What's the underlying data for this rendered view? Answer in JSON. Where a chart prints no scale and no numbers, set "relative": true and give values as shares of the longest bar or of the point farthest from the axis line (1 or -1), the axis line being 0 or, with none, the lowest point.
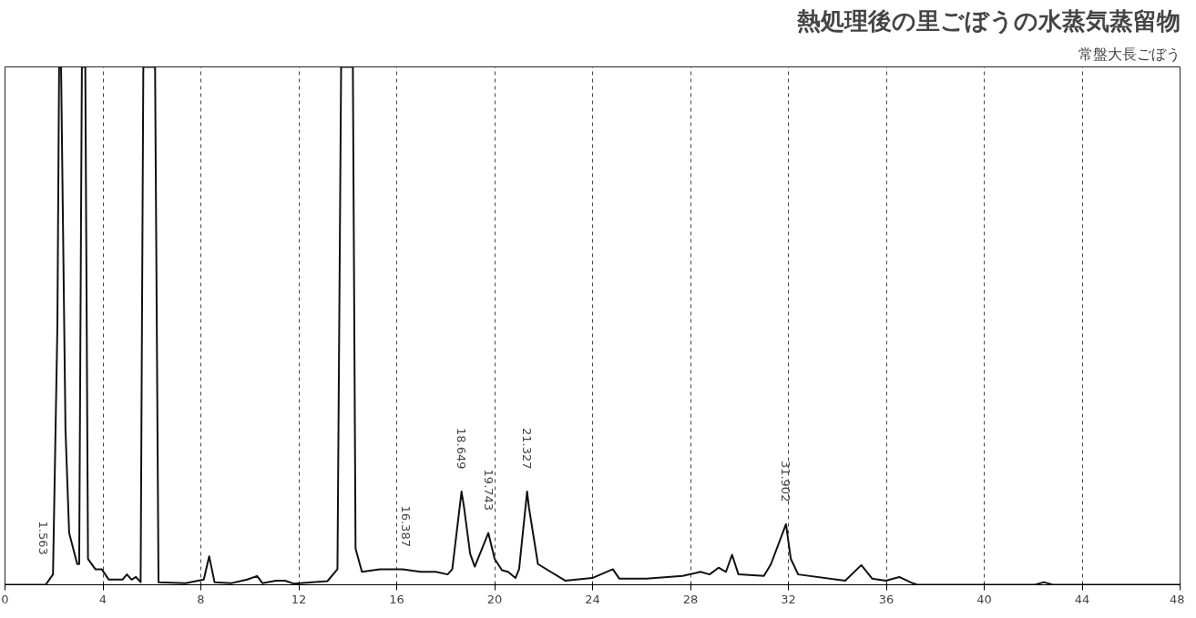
{
  "chart_data": {
    "type": "line",
    "title": "熱処理後の里ごぼうの水蒸気蒸留物",
    "subtitle": "常盤大長ごぼう",
    "relative": true,
    "xlim": [
      0,
      48
    ],
    "xticks": [
      0,
      4,
      8,
      12,
      16,
      20,
      24,
      28,
      32,
      36,
      40,
      44,
      48
    ],
    "grid": "x",
    "line_style": "solid",
    "series": [
      {
        "color": "#111111",
        "x": [
          0,
          1.66,
          1.96,
          2.14,
          2.21,
          2.29,
          2.47,
          2.62,
          2.95,
          3.03,
          3.14,
          3.28,
          3.39,
          3.69,
          3.87,
          3.95,
          4.24,
          4.8,
          4.98,
          5.17,
          5.35,
          5.54,
          5.65,
          6.13,
          6.27,
          7.38,
          8.12,
          8.34,
          8.56,
          9.23,
          9.89,
          10.3,
          10.52,
          11.07,
          11.44,
          11.81,
          13.17,
          13.58,
          13.73,
          14.21,
          14.32,
          14.58,
          15.31,
          16.24,
          16.97,
          17.6,
          18.08,
          18.27,
          18.649,
          18.75,
          19.0,
          19.19,
          19.743,
          20.0,
          20.3,
          20.55,
          20.85,
          21.0,
          21.327,
          21.4,
          21.77,
          22.88,
          23.99,
          24.83,
          25.09,
          26.2,
          27.68,
          28.41,
          28.78,
          29.15,
          29.45,
          29.7,
          29.96,
          31.0,
          31.29,
          31.902,
          32.1,
          32.4,
          34.32,
          34.98,
          35.42,
          35.98,
          36.53,
          37.08,
          37.27,
          42.07,
          42.44,
          42.8,
          48
        ],
        "values": [
          0,
          0,
          0.02,
          0.5,
          1,
          1,
          0.3,
          0.1,
          0.04,
          0.04,
          1,
          1,
          0.05,
          0.03,
          0.03,
          0.03,
          0.01,
          0.01,
          0.02,
          0.01,
          0.015,
          0.005,
          1,
          1,
          0.005,
          0.003,
          0.01,
          0.055,
          0.005,
          0.003,
          0.01,
          0.017,
          0.003,
          0.008,
          0.008,
          0.002,
          0.007,
          0.03,
          1,
          1,
          0.07,
          0.025,
          0.03,
          0.03,
          0.025,
          0.025,
          0.02,
          0.03,
          0.18,
          0.15,
          0.06,
          0.035,
          0.1,
          0.05,
          0.028,
          0.025,
          0.013,
          0.03,
          0.18,
          0.15,
          0.04,
          0.008,
          0.013,
          0.03,
          0.012,
          0.012,
          0.017,
          0.025,
          0.02,
          0.033,
          0.025,
          0.058,
          0.02,
          0.017,
          0.04,
          0.117,
          0.05,
          0.02,
          0.008,
          0.038,
          0.012,
          0.008,
          0.015,
          0.003,
          0,
          0,
          0.005,
          0,
          0
        ]
      }
    ],
    "annotations": [
      {
        "text": "1.563",
        "x": 1.563,
        "y": 0
      },
      {
        "text": "16.387",
        "x": 16.387,
        "y": 0.03
      },
      {
        "text": "18.649",
        "x": 18.649,
        "y": 0.18
      },
      {
        "text": "19.743",
        "x": 19.743,
        "y": 0.1
      },
      {
        "text": "21.327",
        "x": 21.327,
        "y": 0.18
      },
      {
        "text": "31.902",
        "x": 31.902,
        "y": 0.117
      }
    ]
  }
}
